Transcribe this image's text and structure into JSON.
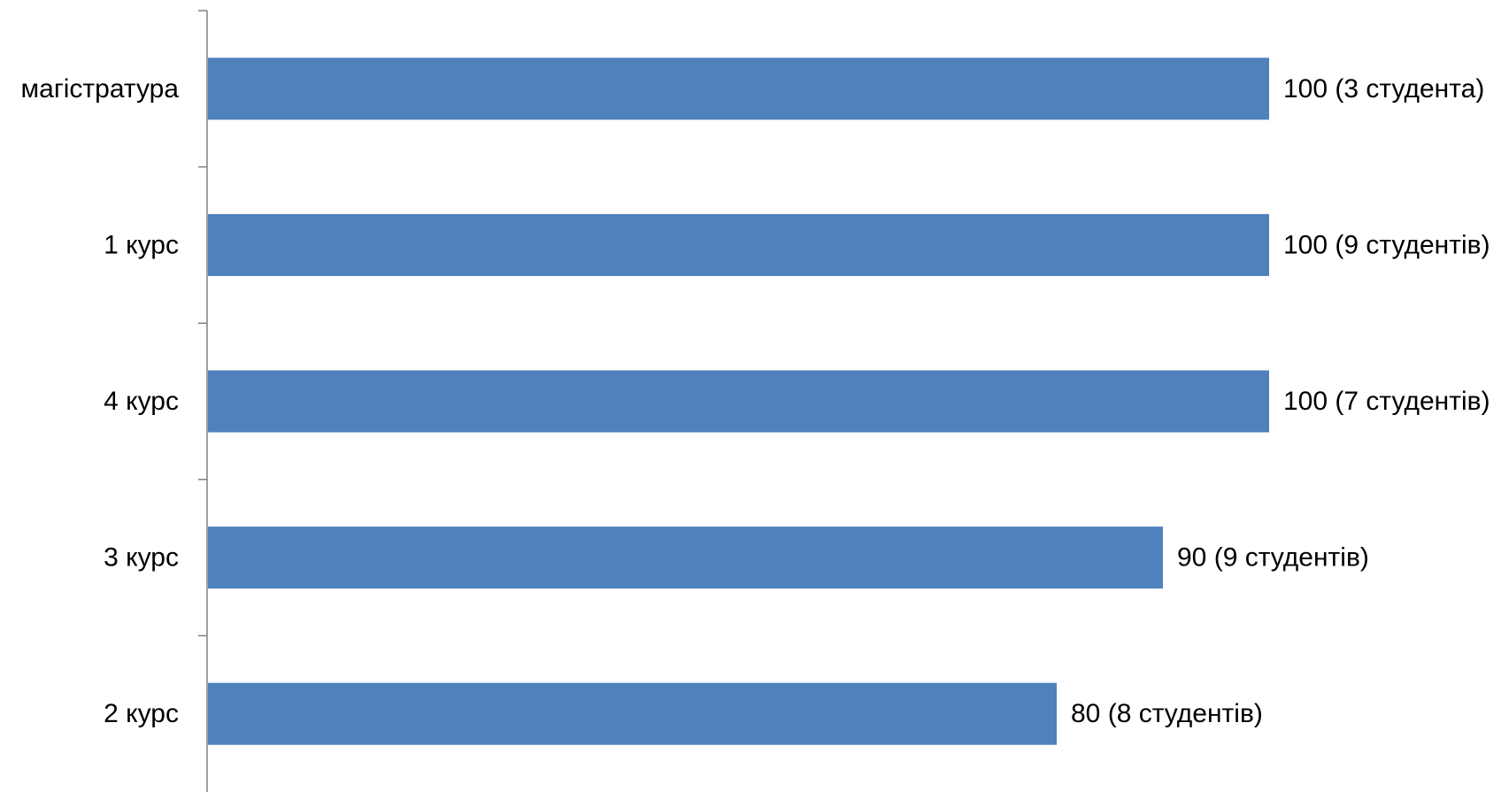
{
  "chart_data": {
    "type": "bar",
    "orientation": "horizontal",
    "categories": [
      "магістратура",
      "1 курс",
      "4 курс",
      "3 курс",
      "2 курс"
    ],
    "values": [
      100,
      100,
      100,
      90,
      80
    ],
    "data_labels": [
      "100 (3 студента)",
      "100  (9 студентів)",
      "100  (7 студентів)",
      "90  (9 студентів)",
      "80 (8 студентів)"
    ],
    "xlim": [
      0,
      100
    ],
    "grid": false,
    "legend": "none",
    "bar_color": "#4F81BD",
    "axis_color": "#808080"
  }
}
